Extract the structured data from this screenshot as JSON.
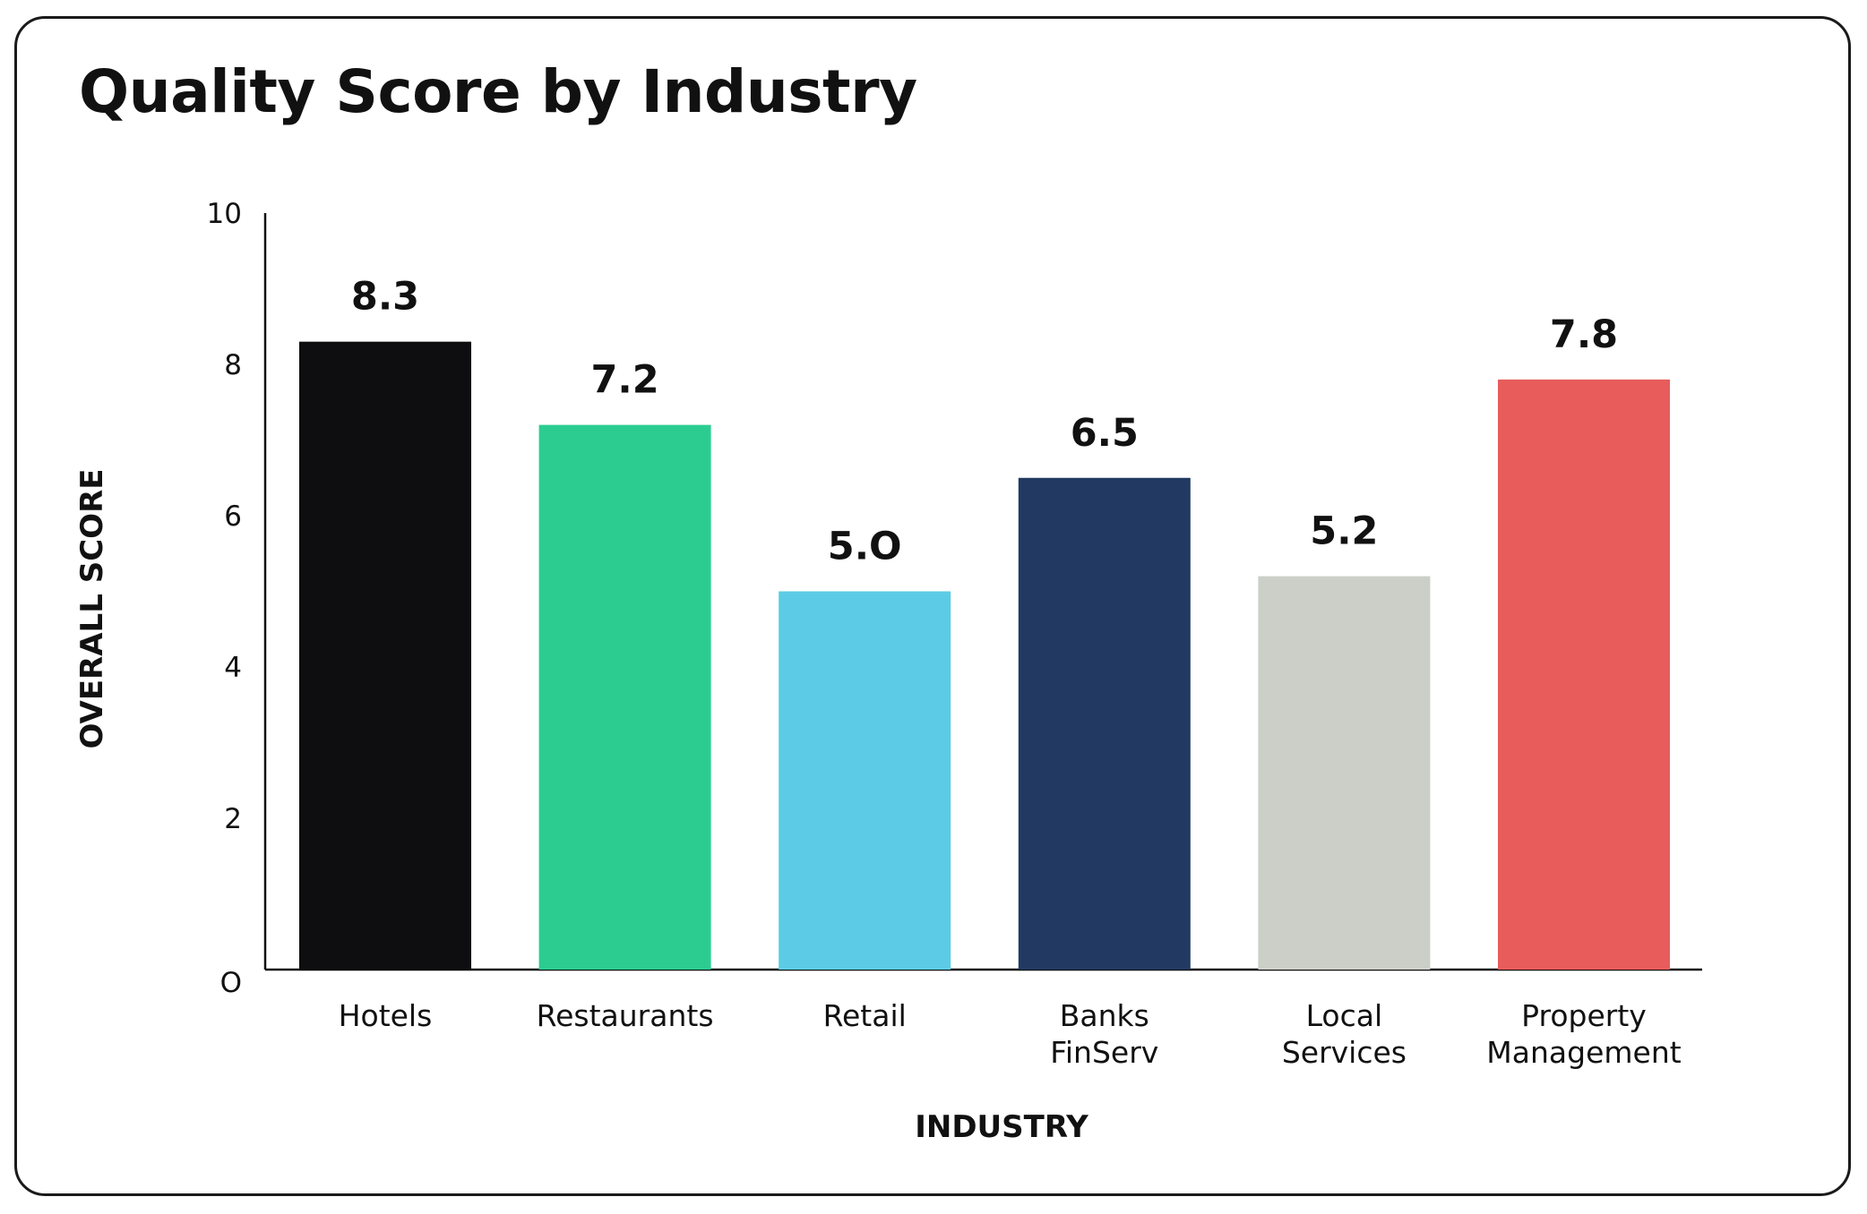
{
  "chart_data": {
    "type": "bar",
    "title": "Quality Score by Industry",
    "xlabel": "INDUSTRY",
    "ylabel": "OVERALL SCORE",
    "categories": [
      [
        "Hotels"
      ],
      [
        "Restaurants"
      ],
      [
        "Retail"
      ],
      [
        "Banks",
        "FinServ"
      ],
      [
        "Local",
        "Services"
      ],
      [
        "Property",
        "Management"
      ]
    ],
    "values": [
      8.3,
      7.2,
      5.0,
      6.5,
      5.2,
      7.8
    ],
    "value_labels": [
      "8.3",
      "7.2",
      "5.O",
      "6.5",
      "5.2",
      "7.8"
    ],
    "colors": [
      "#0e0e10",
      "#2ccc91",
      "#5ccce6",
      "#223a62",
      "#cbcfc8",
      "#e85c5c"
    ],
    "ylim": [
      0,
      10
    ],
    "yticks": [
      "O",
      "2",
      "4",
      "6",
      "8",
      "10"
    ],
    "grid": false,
    "legend": "none"
  }
}
